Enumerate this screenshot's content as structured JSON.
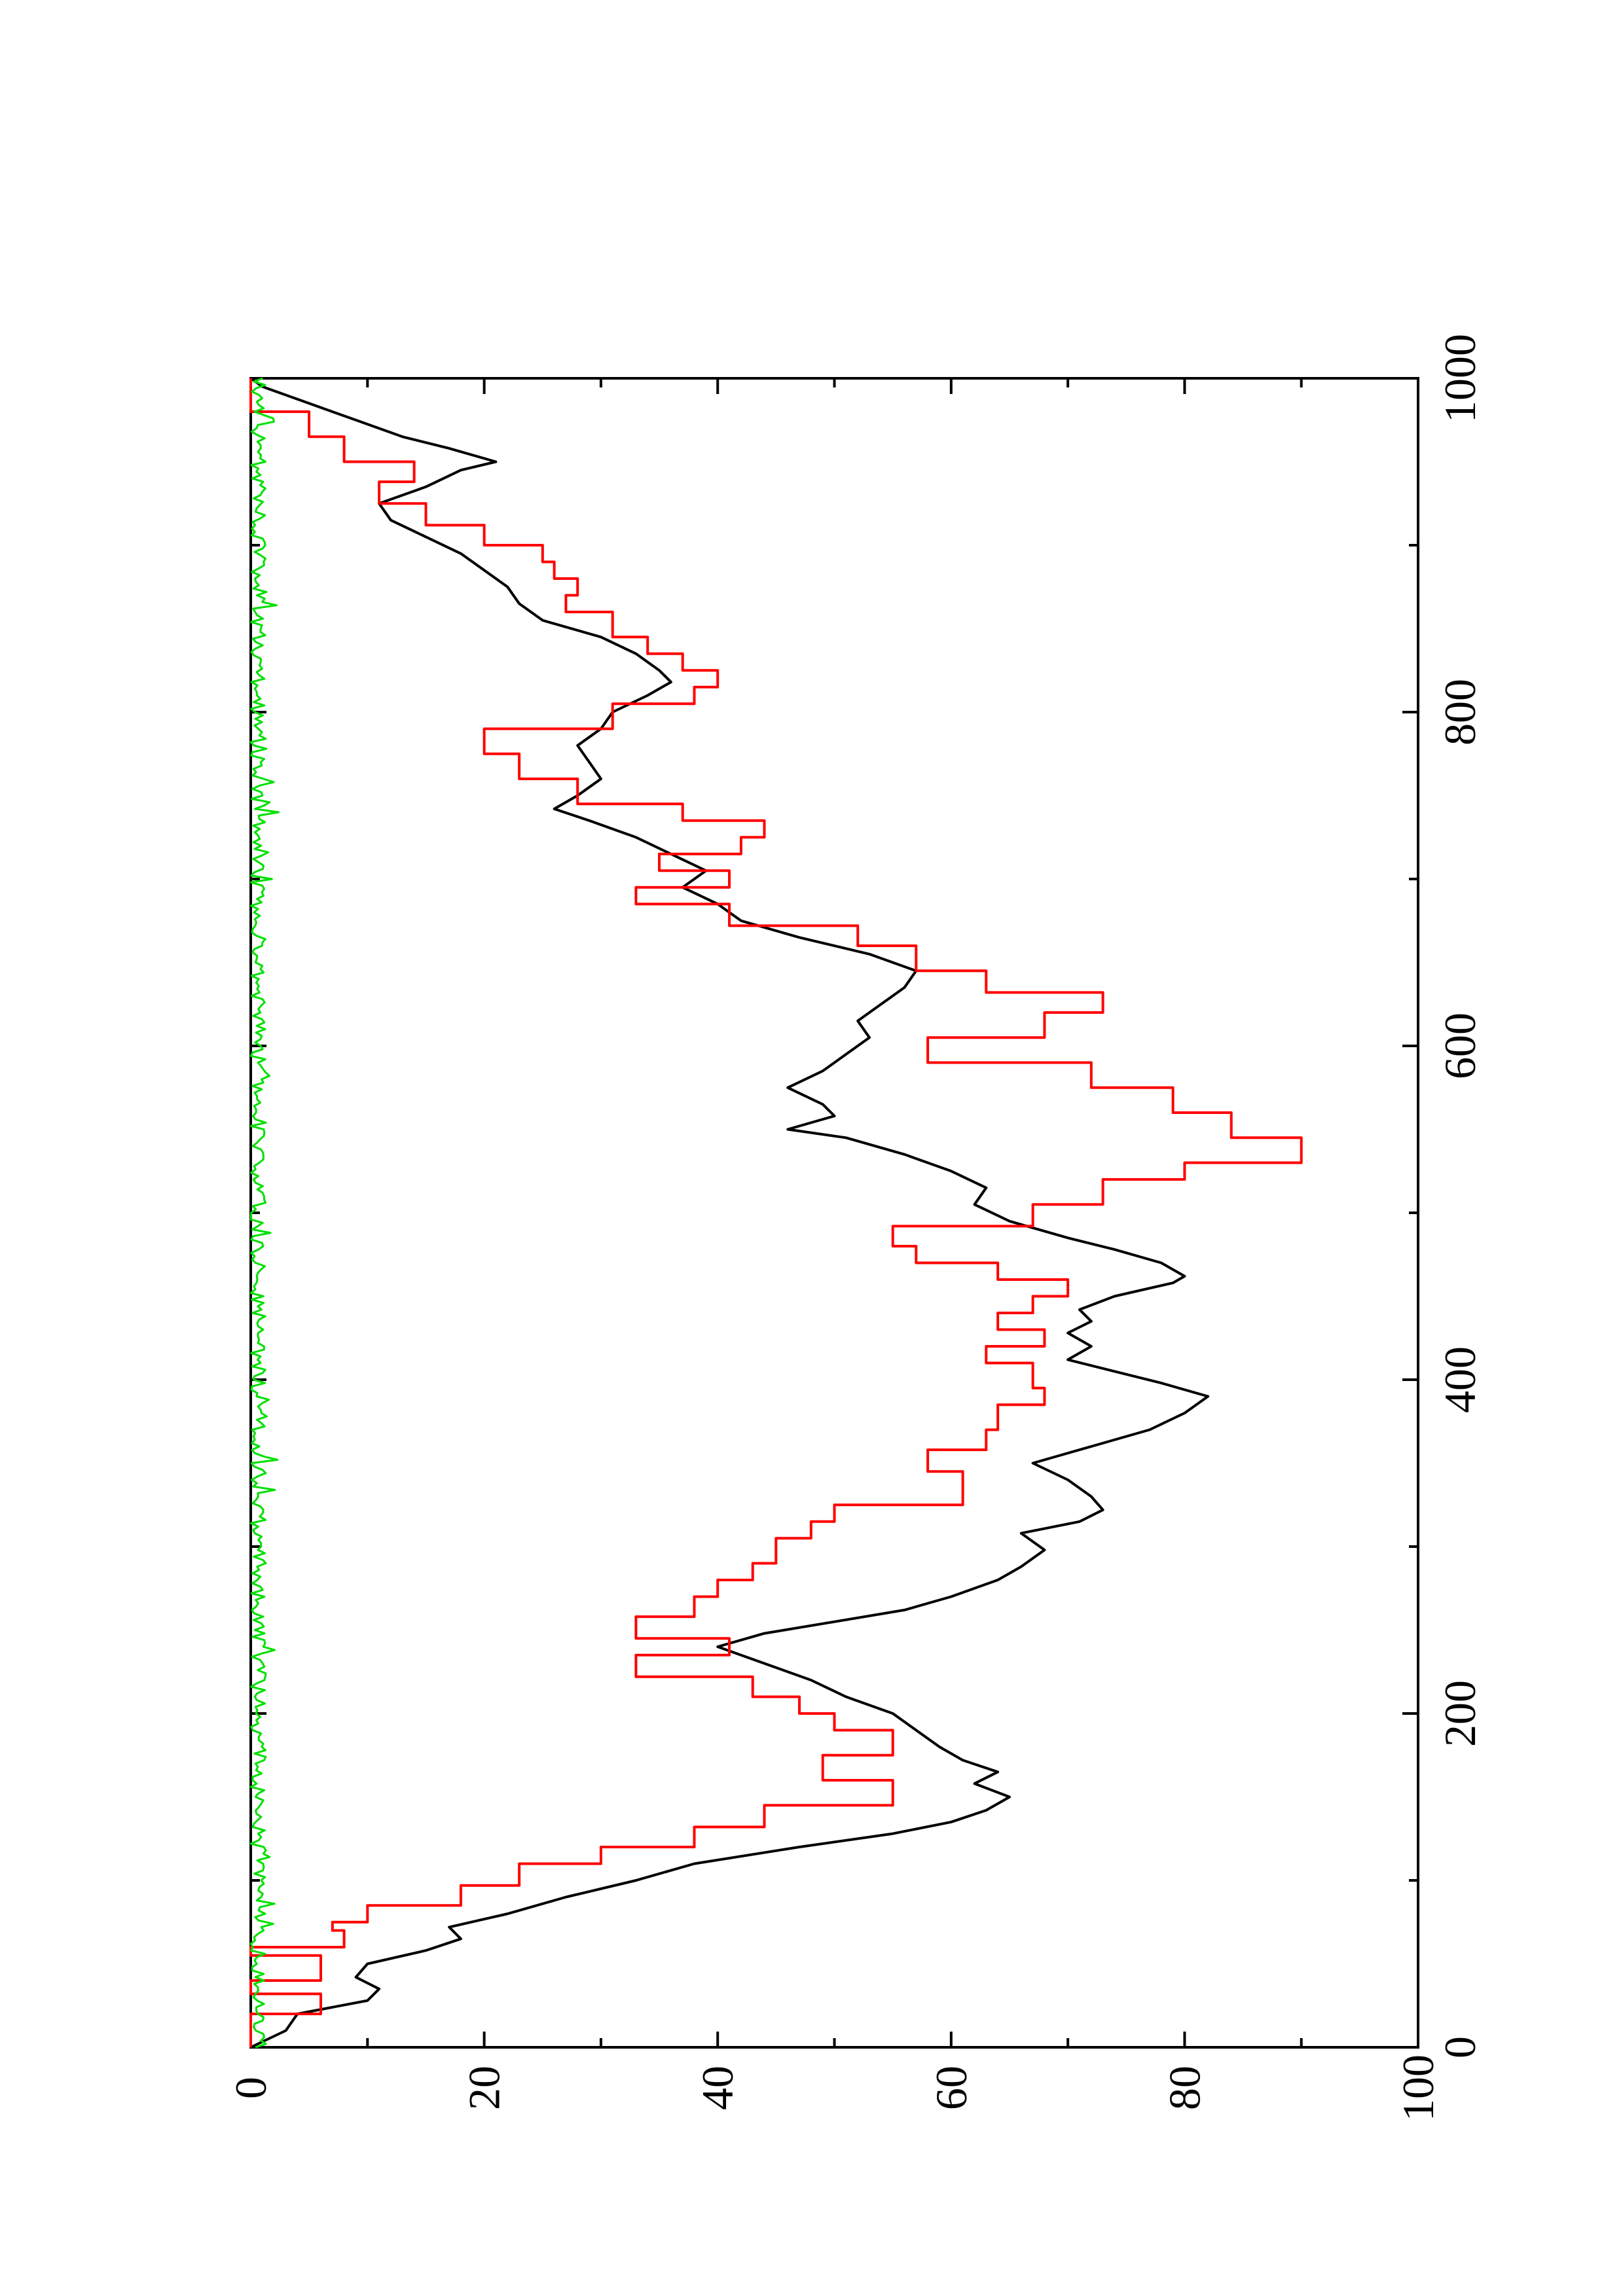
{
  "chart_data": {
    "type": "line",
    "orientation": "rotated-90-ccw",
    "title": "",
    "xlabel": "",
    "ylabel": "",
    "xlim": [
      0,
      1000
    ],
    "ylim": [
      0,
      100
    ],
    "x_ticks": [
      0,
      200,
      400,
      600,
      800,
      1000
    ],
    "x_minor_ticks": [
      100,
      300,
      500,
      700,
      900
    ],
    "y_ticks": [
      0,
      20,
      40,
      60,
      80,
      100
    ],
    "y_minor_ticks": [
      10,
      30,
      50,
      70,
      90
    ],
    "grid": false,
    "legend": "none",
    "series": [
      {
        "color": "#000000",
        "style": "line",
        "points": [
          [
            0,
            0
          ],
          [
            10,
            3
          ],
          [
            20,
            4
          ],
          [
            28,
            10
          ],
          [
            35,
            11
          ],
          [
            42,
            9
          ],
          [
            50,
            10
          ],
          [
            58,
            15
          ],
          [
            65,
            18
          ],
          [
            72,
            17
          ],
          [
            80,
            22
          ],
          [
            90,
            27
          ],
          [
            100,
            33
          ],
          [
            110,
            38
          ],
          [
            120,
            47
          ],
          [
            128,
            55
          ],
          [
            135,
            60
          ],
          [
            142,
            63
          ],
          [
            150,
            65
          ],
          [
            158,
            62
          ],
          [
            165,
            64
          ],
          [
            172,
            61
          ],
          [
            180,
            59
          ],
          [
            190,
            57
          ],
          [
            200,
            55
          ],
          [
            210,
            51
          ],
          [
            220,
            48
          ],
          [
            230,
            44
          ],
          [
            240,
            40
          ],
          [
            248,
            44
          ],
          [
            255,
            50
          ],
          [
            262,
            56
          ],
          [
            270,
            60
          ],
          [
            280,
            64
          ],
          [
            288,
            66
          ],
          [
            298,
            68
          ],
          [
            308,
            66
          ],
          [
            315,
            71
          ],
          [
            322,
            73
          ],
          [
            330,
            72
          ],
          [
            340,
            70
          ],
          [
            350,
            67
          ],
          [
            360,
            72
          ],
          [
            370,
            77
          ],
          [
            380,
            80
          ],
          [
            390,
            82
          ],
          [
            398,
            78
          ],
          [
            405,
            74
          ],
          [
            412,
            70
          ],
          [
            420,
            72
          ],
          [
            428,
            70
          ],
          [
            435,
            72
          ],
          [
            442,
            71
          ],
          [
            450,
            74
          ],
          [
            458,
            79
          ],
          [
            462,
            80
          ],
          [
            470,
            78
          ],
          [
            478,
            74
          ],
          [
            485,
            70
          ],
          [
            495,
            65
          ],
          [
            505,
            62
          ],
          [
            515,
            63
          ],
          [
            525,
            60
          ],
          [
            535,
            56
          ],
          [
            545,
            51
          ],
          [
            550,
            46
          ],
          [
            558,
            50
          ],
          [
            565,
            49
          ],
          [
            575,
            46
          ],
          [
            585,
            49
          ],
          [
            595,
            51
          ],
          [
            605,
            53
          ],
          [
            615,
            52
          ],
          [
            625,
            54
          ],
          [
            635,
            56
          ],
          [
            645,
            57
          ],
          [
            655,
            53
          ],
          [
            665,
            47
          ],
          [
            675,
            42
          ],
          [
            685,
            40
          ],
          [
            695,
            37
          ],
          [
            705,
            39
          ],
          [
            715,
            36
          ],
          [
            725,
            33
          ],
          [
            735,
            29
          ],
          [
            742,
            26
          ],
          [
            750,
            28
          ],
          [
            760,
            30
          ],
          [
            770,
            29
          ],
          [
            780,
            28
          ],
          [
            790,
            30
          ],
          [
            800,
            31
          ],
          [
            810,
            34
          ],
          [
            818,
            36
          ],
          [
            825,
            35
          ],
          [
            835,
            33
          ],
          [
            845,
            30
          ],
          [
            855,
            25
          ],
          [
            865,
            23
          ],
          [
            875,
            22
          ],
          [
            885,
            20
          ],
          [
            895,
            18
          ],
          [
            905,
            15
          ],
          [
            915,
            12
          ],
          [
            925,
            11
          ],
          [
            935,
            15
          ],
          [
            945,
            18
          ],
          [
            950,
            21
          ],
          [
            958,
            17
          ],
          [
            965,
            13
          ],
          [
            975,
            9
          ],
          [
            985,
            5
          ],
          [
            995,
            1
          ],
          [
            1000,
            0
          ]
        ]
      },
      {
        "color": "#ff0000",
        "style": "step",
        "points": [
          [
            0,
            0
          ],
          [
            20,
            0
          ],
          [
            20,
            6
          ],
          [
            32,
            6
          ],
          [
            32,
            0
          ],
          [
            40,
            0
          ],
          [
            40,
            6
          ],
          [
            55,
            6
          ],
          [
            55,
            0
          ],
          [
            60,
            0
          ],
          [
            60,
            8
          ],
          [
            70,
            8
          ],
          [
            70,
            7
          ],
          [
            75,
            7
          ],
          [
            75,
            10
          ],
          [
            85,
            10
          ],
          [
            85,
            18
          ],
          [
            97,
            18
          ],
          [
            97,
            23
          ],
          [
            110,
            23
          ],
          [
            110,
            30
          ],
          [
            120,
            30
          ],
          [
            120,
            38
          ],
          [
            132,
            38
          ],
          [
            132,
            44
          ],
          [
            145,
            44
          ],
          [
            145,
            55
          ],
          [
            160,
            55
          ],
          [
            160,
            49
          ],
          [
            175,
            49
          ],
          [
            175,
            55
          ],
          [
            190,
            55
          ],
          [
            190,
            50
          ],
          [
            200,
            50
          ],
          [
            200,
            47
          ],
          [
            210,
            47
          ],
          [
            210,
            43
          ],
          [
            222,
            43
          ],
          [
            222,
            33
          ],
          [
            235,
            33
          ],
          [
            235,
            41
          ],
          [
            245,
            41
          ],
          [
            245,
            33
          ],
          [
            258,
            33
          ],
          [
            258,
            38
          ],
          [
            270,
            38
          ],
          [
            270,
            40
          ],
          [
            280,
            40
          ],
          [
            280,
            43
          ],
          [
            290,
            43
          ],
          [
            290,
            45
          ],
          [
            305,
            45
          ],
          [
            305,
            48
          ],
          [
            315,
            48
          ],
          [
            315,
            50
          ],
          [
            325,
            50
          ],
          [
            325,
            61
          ],
          [
            345,
            61
          ],
          [
            345,
            58
          ],
          [
            358,
            58
          ],
          [
            358,
            63
          ],
          [
            370,
            63
          ],
          [
            370,
            64
          ],
          [
            385,
            64
          ],
          [
            385,
            68
          ],
          [
            395,
            68
          ],
          [
            395,
            67
          ],
          [
            410,
            67
          ],
          [
            410,
            63
          ],
          [
            420,
            63
          ],
          [
            420,
            68
          ],
          [
            430,
            68
          ],
          [
            430,
            64
          ],
          [
            440,
            64
          ],
          [
            440,
            67
          ],
          [
            450,
            67
          ],
          [
            450,
            70
          ],
          [
            460,
            70
          ],
          [
            460,
            64
          ],
          [
            470,
            64
          ],
          [
            470,
            57
          ],
          [
            480,
            57
          ],
          [
            480,
            55
          ],
          [
            492,
            55
          ],
          [
            492,
            67
          ],
          [
            505,
            67
          ],
          [
            505,
            73
          ],
          [
            520,
            73
          ],
          [
            520,
            80
          ],
          [
            530,
            80
          ],
          [
            530,
            90
          ],
          [
            545,
            90
          ],
          [
            545,
            84
          ],
          [
            560,
            84
          ],
          [
            560,
            79
          ],
          [
            575,
            79
          ],
          [
            575,
            72
          ],
          [
            590,
            72
          ],
          [
            590,
            58
          ],
          [
            605,
            58
          ],
          [
            605,
            68
          ],
          [
            620,
            68
          ],
          [
            620,
            73
          ],
          [
            632,
            73
          ],
          [
            632,
            63
          ],
          [
            645,
            63
          ],
          [
            645,
            57
          ],
          [
            660,
            57
          ],
          [
            660,
            52
          ],
          [
            672,
            52
          ],
          [
            672,
            41
          ],
          [
            685,
            41
          ],
          [
            685,
            33
          ],
          [
            695,
            33
          ],
          [
            695,
            41
          ],
          [
            705,
            41
          ],
          [
            705,
            35
          ],
          [
            715,
            35
          ],
          [
            715,
            42
          ],
          [
            725,
            42
          ],
          [
            725,
            44
          ],
          [
            735,
            44
          ],
          [
            735,
            37
          ],
          [
            745,
            37
          ],
          [
            745,
            28
          ],
          [
            760,
            28
          ],
          [
            760,
            23
          ],
          [
            775,
            23
          ],
          [
            775,
            20
          ],
          [
            790,
            20
          ],
          [
            790,
            31
          ],
          [
            805,
            31
          ],
          [
            805,
            38
          ],
          [
            815,
            38
          ],
          [
            815,
            40
          ],
          [
            825,
            40
          ],
          [
            825,
            37
          ],
          [
            835,
            37
          ],
          [
            835,
            34
          ],
          [
            845,
            34
          ],
          [
            845,
            31
          ],
          [
            860,
            31
          ],
          [
            860,
            27
          ],
          [
            870,
            27
          ],
          [
            870,
            28
          ],
          [
            880,
            28
          ],
          [
            880,
            26
          ],
          [
            890,
            26
          ],
          [
            890,
            25
          ],
          [
            900,
            25
          ],
          [
            900,
            20
          ],
          [
            912,
            20
          ],
          [
            912,
            15
          ],
          [
            925,
            15
          ],
          [
            925,
            11
          ],
          [
            938,
            11
          ],
          [
            938,
            14
          ],
          [
            950,
            14
          ],
          [
            950,
            8
          ],
          [
            965,
            8
          ],
          [
            965,
            5
          ],
          [
            980,
            5
          ],
          [
            980,
            0
          ],
          [
            1000,
            0
          ]
        ]
      },
      {
        "color": "#00e000",
        "style": "noise",
        "x_range": [
          0,
          1000
        ],
        "y_range": [
          0,
          2.5
        ]
      }
    ]
  }
}
